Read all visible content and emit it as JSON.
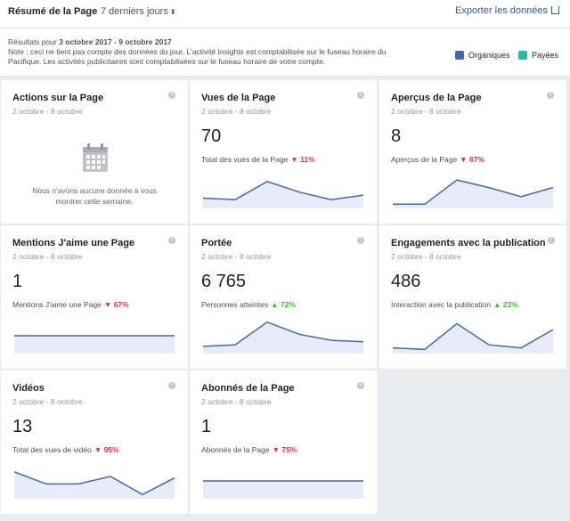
{
  "header": {
    "title": "Résumé de la Page",
    "range_label": "7 derniers jours",
    "range_caret": "⬍",
    "export_label": "Exporter les données"
  },
  "note": {
    "results_prefix": "Résultats pour ",
    "results_dates": "3 octobre 2017 - 9 octobre 2017",
    "line2": "Note : ceci ne tient pas compte des données du jour. L'activité Insights est comptabilisée sur le fuseau horaire du",
    "line3": "Pacifique. Les activités publicitaires sont comptabilisées sur le fuseau horaire de votre compte."
  },
  "legend": {
    "organic_label": "Organiques",
    "organic_color": "#4267b2",
    "paid_label": "Payées",
    "paid_color": "#2abba7"
  },
  "cards": [
    {
      "title": "Actions sur la Page",
      "date": "2 octobre - 8 octobre",
      "empty_line1": "Nous n'avons aucune donnée à vous",
      "empty_line2": "montrer cette semaine.",
      "icon": "calendar-icon"
    },
    {
      "title": "Vues de la Page",
      "date": "2 octobre - 8 octobre",
      "value": "70",
      "subtitle": "Total des vues de la Page",
      "trend": "down",
      "trend_arrow": "▼",
      "change": "11%",
      "spark": [
        0.25,
        0.2,
        0.8,
        0.45,
        0.2,
        0.35
      ]
    },
    {
      "title": "Aperçus de la Page",
      "date": "2 octobre - 8 octobre",
      "value": "8",
      "subtitle": "Aperçus de la Page",
      "trend": "down",
      "trend_arrow": "▼",
      "change": "67%",
      "spark": [
        0.05,
        0.05,
        0.85,
        0.6,
        0.3,
        0.6
      ]
    },
    {
      "title": "Mentions J'aime une Page",
      "date": "2 octobre - 8 octobre",
      "value": "1",
      "subtitle": "Mentions J'aime une Page",
      "trend": "down",
      "trend_arrow": "▼",
      "change": "67%",
      "spark": [
        0.5,
        0.5,
        0.5,
        0.5,
        0.5,
        0.5
      ]
    },
    {
      "title": "Portée",
      "date": "2 octobre - 8 octobre",
      "value": "6 765",
      "subtitle": "Personnes atteintes",
      "trend": "up",
      "trend_arrow": "▲",
      "change": "72%",
      "spark": [
        0.15,
        0.2,
        0.95,
        0.55,
        0.35,
        0.3
      ]
    },
    {
      "title": "Engagements avec la publication",
      "date": "2 octobre - 8 octobre",
      "value": "486",
      "subtitle": "Interaction avec la publication",
      "trend": "up",
      "trend_arrow": "▲",
      "change": "23%",
      "spark": [
        0.1,
        0.05,
        0.9,
        0.2,
        0.1,
        0.7
      ]
    },
    {
      "title": "Vidéos",
      "date": "2 octobre - 8 octobre",
      "value": "13",
      "subtitle": "Total des vues de vidéo",
      "trend": "down",
      "trend_arrow": "▼",
      "change": "95%",
      "spark": [
        0.8,
        0.4,
        0.4,
        0.65,
        0.05,
        0.6
      ]
    },
    {
      "title": "Abonnés de la Page",
      "date": "2 octobre - 8 octobre",
      "value": "1",
      "subtitle": "Abonnés de la Page",
      "trend": "down",
      "trend_arrow": "▼",
      "change": "75%",
      "spark": [
        0.5,
        0.5,
        0.5,
        0.5,
        0.5,
        0.5
      ]
    }
  ],
  "info_glyph": "i"
}
